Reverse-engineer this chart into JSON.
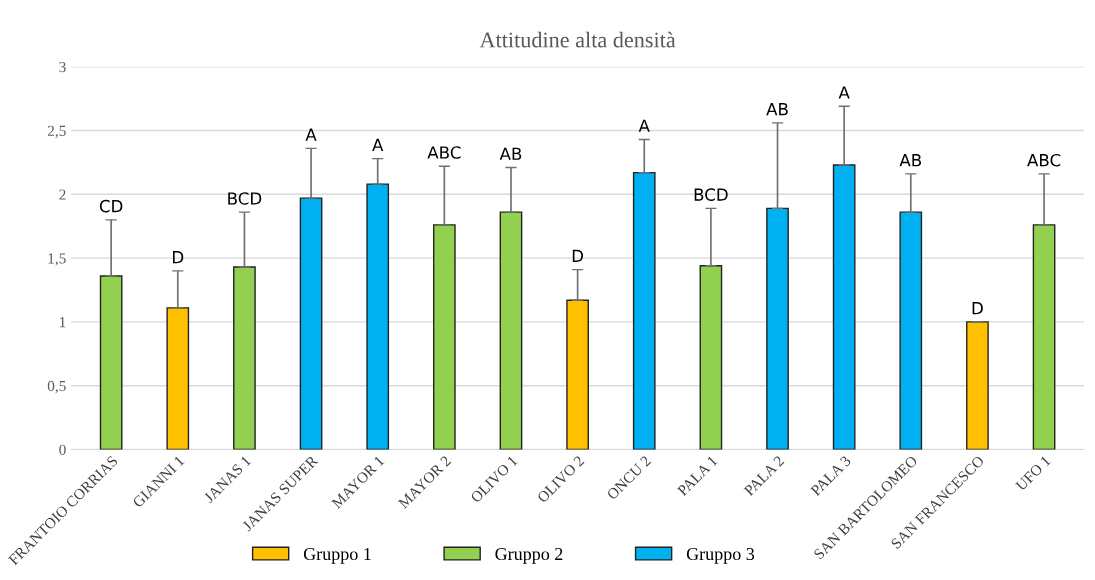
{
  "chart_data": {
    "type": "bar",
    "title": "Attitudine alta densità",
    "categories": [
      "FRANTOIO CORRIAS",
      "GIANNI 1",
      "JANAS 1",
      "JANAS SUPER",
      "MAYOR 1",
      "MAYOR 2",
      "OLIVO 1",
      "OLIVO 2",
      "ONCU 2",
      "PALA 1",
      "PALA 2",
      "PALA 3",
      "SAN BARTOLOMEO",
      "SAN FRANCESCO",
      "UFO 1"
    ],
    "series": [
      {
        "name": "Gruppo 1",
        "color": "#ffc000",
        "values": [
          null,
          1.11,
          null,
          null,
          null,
          null,
          null,
          1.17,
          null,
          null,
          null,
          null,
          null,
          1.0,
          null
        ],
        "errors": [
          null,
          [
            1.11,
            1.4
          ],
          null,
          null,
          null,
          null,
          null,
          [
            1.17,
            1.41
          ],
          null,
          null,
          null,
          null,
          null,
          [
            1.0,
            1.0
          ],
          null
        ]
      },
      {
        "name": "Gruppo 2",
        "color": "#92d050",
        "values": [
          1.36,
          null,
          1.43,
          null,
          null,
          1.76,
          1.86,
          null,
          null,
          1.44,
          null,
          null,
          null,
          null,
          1.76
        ],
        "errors": [
          [
            1.36,
            1.8
          ],
          null,
          [
            1.43,
            1.86
          ],
          null,
          null,
          [
            1.76,
            2.22
          ],
          [
            1.86,
            2.21
          ],
          null,
          null,
          [
            1.44,
            1.89
          ],
          null,
          null,
          null,
          null,
          [
            1.76,
            2.16
          ]
        ]
      },
      {
        "name": "Gruppo 3",
        "color": "#00b0f0",
        "values": [
          null,
          null,
          null,
          1.97,
          2.08,
          null,
          null,
          null,
          2.17,
          null,
          1.89,
          2.23,
          1.86,
          null,
          null
        ],
        "errors": [
          null,
          null,
          null,
          [
            1.97,
            2.36
          ],
          [
            2.08,
            2.28
          ],
          null,
          null,
          null,
          [
            2.17,
            2.43
          ],
          null,
          [
            1.89,
            2.56
          ],
          [
            2.23,
            2.69
          ],
          [
            1.86,
            2.16
          ],
          null,
          null
        ]
      }
    ],
    "annotations": [
      {
        "text": "CD",
        "x": "FRANTOIO CORRIAS",
        "y": 1.8
      },
      {
        "text": "D",
        "x": "GIANNI 1",
        "y": 1.4
      },
      {
        "text": "BCD",
        "x": "JANAS 1",
        "y": 1.86
      },
      {
        "text": "A",
        "x": "JANAS SUPER",
        "y": 2.36
      },
      {
        "text": "A",
        "x": "MAYOR 1",
        "y": 2.28
      },
      {
        "text": "ABC",
        "x": "MAYOR 2",
        "y": 2.22
      },
      {
        "text": "AB",
        "x": "OLIVO 1",
        "y": 2.21
      },
      {
        "text": "D",
        "x": "OLIVO 2",
        "y": 1.41
      },
      {
        "text": "A",
        "x": "ONCU 2",
        "y": 2.43
      },
      {
        "text": "BCD",
        "x": "PALA 1",
        "y": 1.89
      },
      {
        "text": "AB",
        "x": "PALA 2",
        "y": 2.56
      },
      {
        "text": "A",
        "x": "PALA 3",
        "y": 2.69
      },
      {
        "text": "AB",
        "x": "SAN BARTOLOMEO",
        "y": 2.16
      },
      {
        "text": "D",
        "x": "SAN FRANCESCO",
        "y": 1.0
      },
      {
        "text": "ABC",
        "x": "UFO 1",
        "y": 2.16
      }
    ],
    "ylim": [
      0,
      3
    ],
    "yticks": [
      0,
      {
        "value": 0.5,
        "label": "0,5"
      },
      1,
      {
        "value": 1.5,
        "label": "1,5"
      },
      2,
      {
        "value": 2.5,
        "label": "2,5"
      },
      3
    ],
    "grid": "y",
    "legend": "bottom"
  }
}
